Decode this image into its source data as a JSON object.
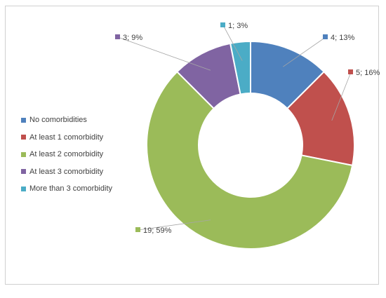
{
  "chart_data": {
    "type": "pie",
    "variant": "donut",
    "categories": [
      "No comorbidities",
      "At least 1 comorbidity",
      "At least 2 comorbidity",
      "At least 3 comorbidity",
      "More than 3 comorbidity"
    ],
    "values": [
      4,
      5,
      19,
      3,
      1
    ],
    "percents": [
      13,
      16,
      59,
      9,
      3
    ],
    "data_labels": [
      "4; 13%",
      "5; 16%",
      "19; 59%",
      "3; 9%",
      "1; 3%"
    ],
    "colors": [
      "#4f81bd",
      "#c0504d",
      "#9bbb59",
      "#8064a2",
      "#4bacc6"
    ],
    "title": "",
    "legend_position": "left"
  }
}
